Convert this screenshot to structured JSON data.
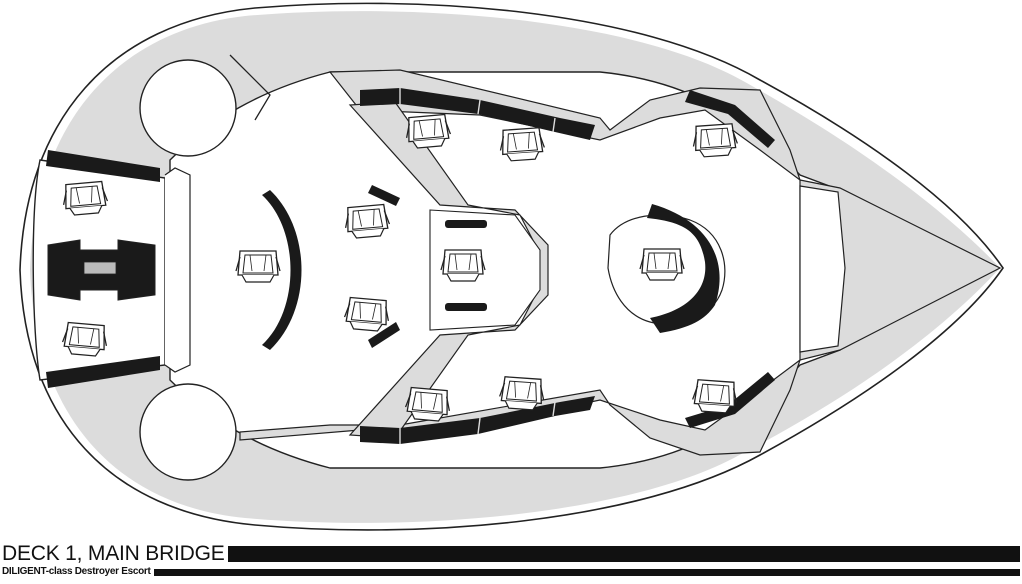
{
  "drawing": {
    "title": "DECK 1, MAIN BRIDGE",
    "subtitle": "DILIGENT-class Destroyer Escort"
  },
  "colors": {
    "hull_fill": "#ffffff",
    "floor_fill": "#dcdcdc",
    "console_fill": "#1a1a1a",
    "line": "#222222"
  },
  "icons": {
    "seat": "chair-icon"
  }
}
